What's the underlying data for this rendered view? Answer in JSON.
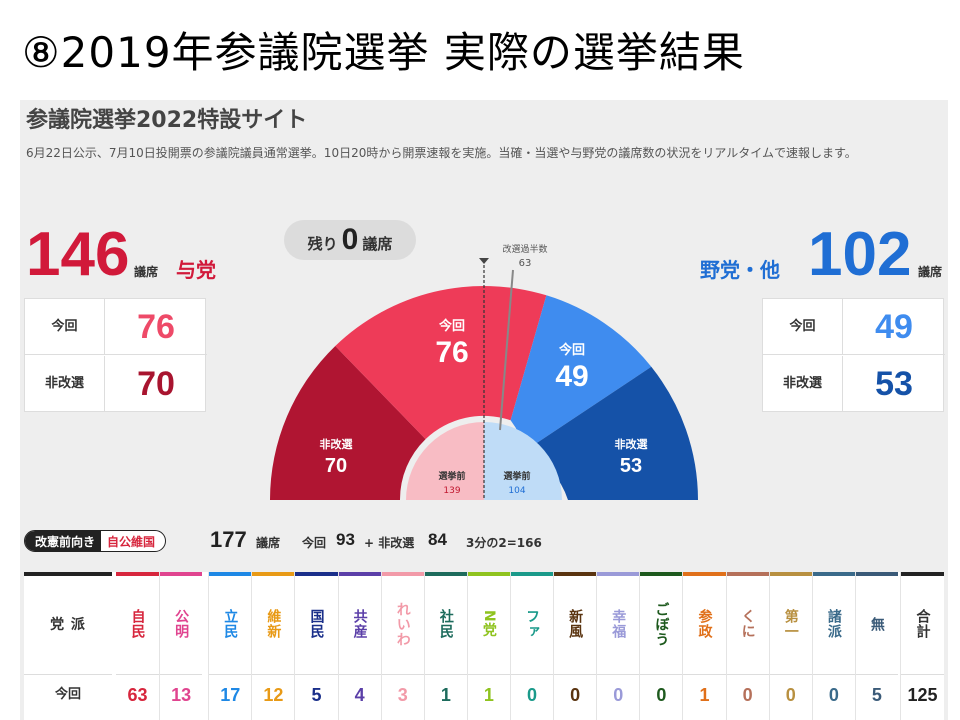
{
  "slide_title": "⑧2019年参議院選挙 実際の選挙結果",
  "site": {
    "title": "参議院選挙2022特設サイト",
    "description": "6月22日公示、7月10日投開票の参議院議員通常選挙。10日20時から開票速報を実施。当確・当選や与野党の議席数の状況をリアルタイムで速報します。"
  },
  "colors": {
    "ruling": "#d1193a",
    "ruling_light": "#ee3b58",
    "ruling_dark": "#b01532",
    "opposition": "#1f6ed4",
    "opposition_light": "#3f8cef",
    "opposition_dark": "#1552a8"
  },
  "ruling": {
    "total": "146",
    "unit": "議席",
    "label": "与党",
    "rows": [
      {
        "label": "今回",
        "value": "76"
      },
      {
        "label": "非改選",
        "value": "70"
      }
    ]
  },
  "opposition": {
    "total": "102",
    "unit": "議席",
    "label": "野党・他",
    "rows": [
      {
        "label": "今回",
        "value": "49"
      },
      {
        "label": "非改選",
        "value": "53"
      }
    ]
  },
  "remaining": {
    "prefix": "残り",
    "value": "0",
    "suffix": "議席"
  },
  "chart": {
    "majority_label": "改選過半数",
    "majority_value": "63",
    "segments": {
      "ruling_current": {
        "label": "今回",
        "value": "76"
      },
      "ruling_noncontest": {
        "label": "非改選",
        "value": "70"
      },
      "opp_current": {
        "label": "今回",
        "value": "49"
      },
      "opp_noncontest": {
        "label": "非改選",
        "value": "53"
      }
    },
    "before": {
      "ruling": {
        "label": "選挙前",
        "value": "139"
      },
      "opposition": {
        "label": "選挙前",
        "value": "104"
      }
    }
  },
  "summary": {
    "pill_left": "改憲前向き",
    "pill_right": "自公維国",
    "seats": "177",
    "seats_unit": "議席",
    "current_label": "今回",
    "current_value": "93",
    "plus_label": "+ 非改選",
    "noncontest_value": "84",
    "two_thirds": "3分の2=166"
  },
  "table": {
    "header_label": "党 派",
    "row_label": "今回",
    "parties": [
      {
        "name": "自民",
        "value": "63",
        "color": "#d7263d"
      },
      {
        "name": "公明",
        "value": "13",
        "color": "#e0448f"
      },
      {
        "name": "立民",
        "value": "17",
        "color": "#1e88e5"
      },
      {
        "name": "維新",
        "value": "12",
        "color": "#e89a16"
      },
      {
        "name": "国民",
        "value": "5",
        "color": "#1a2f8a"
      },
      {
        "name": "共産",
        "value": "4",
        "color": "#5b3fa8"
      },
      {
        "name": "れいわ",
        "value": "3",
        "color": "#f29aa8"
      },
      {
        "name": "社民",
        "value": "1",
        "color": "#1d6b5c"
      },
      {
        "name": "N党",
        "value": "1",
        "color": "#8fc31f"
      },
      {
        "name": "ファ",
        "value": "0",
        "color": "#1a9a8a"
      },
      {
        "name": "新風",
        "value": "0",
        "color": "#5a3410"
      },
      {
        "name": "幸福",
        "value": "0",
        "color": "#9a9ad8"
      },
      {
        "name": "ごぼう",
        "value": "0",
        "color": "#1e5a1e"
      },
      {
        "name": "参政",
        "value": "1",
        "color": "#e0701a"
      },
      {
        "name": "くに",
        "value": "0",
        "color": "#b5705a"
      },
      {
        "name": "第一",
        "value": "0",
        "color": "#b89040"
      },
      {
        "name": "諸派",
        "value": "0",
        "color": "#3a6a8a"
      },
      {
        "name": "無",
        "value": "5",
        "color": "#3a5a78"
      }
    ],
    "total_label": "合計",
    "total_value": "125"
  }
}
